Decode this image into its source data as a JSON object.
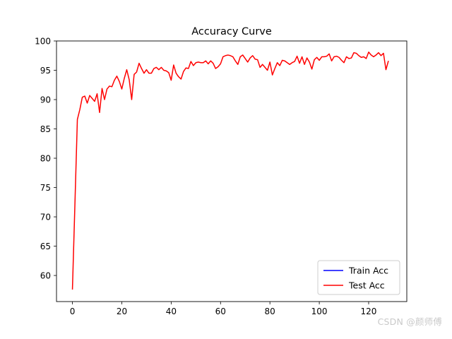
{
  "chart_data": {
    "type": "line",
    "title": "Accuracy Curve",
    "xlabel": "",
    "ylabel": "",
    "xlim": [
      -6.45,
      135.45
    ],
    "ylim": [
      55.55,
      100.0
    ],
    "xticks": [
      0,
      20,
      40,
      60,
      80,
      100,
      120
    ],
    "yticks": [
      60,
      65,
      70,
      75,
      80,
      85,
      90,
      95,
      100
    ],
    "grid": false,
    "legend_position": "bottom-right",
    "series": [
      {
        "name": "Train Acc",
        "color": "#0000ff",
        "x": [],
        "values": []
      },
      {
        "name": "Test Acc",
        "color": "#ff0000",
        "x": [
          0,
          1,
          2,
          3,
          4,
          5,
          6,
          7,
          8,
          9,
          10,
          11,
          12,
          13,
          14,
          15,
          16,
          17,
          18,
          19,
          20,
          21,
          22,
          23,
          24,
          25,
          26,
          27,
          28,
          29,
          30,
          31,
          32,
          33,
          34,
          35,
          36,
          37,
          38,
          39,
          40,
          41,
          42,
          43,
          44,
          45,
          46,
          47,
          48,
          49,
          50,
          51,
          52,
          53,
          54,
          55,
          56,
          57,
          58,
          59,
          60,
          61,
          62,
          63,
          64,
          65,
          66,
          67,
          68,
          69,
          70,
          71,
          72,
          73,
          74,
          75,
          76,
          77,
          78,
          79,
          80,
          81,
          82,
          83,
          84,
          85,
          86,
          87,
          88,
          89,
          90,
          91,
          92,
          93,
          94,
          95,
          96,
          97,
          98,
          99,
          100,
          101,
          102,
          103,
          104,
          105,
          106,
          107,
          108,
          109,
          110,
          111,
          112,
          113,
          114,
          115,
          116,
          117,
          118,
          119,
          120,
          121,
          122,
          123,
          124,
          125,
          126,
          127,
          128
        ],
        "values": [
          57.6,
          72.0,
          86.6,
          88.3,
          90.4,
          90.6,
          89.4,
          90.7,
          90.2,
          89.7,
          91.0,
          87.8,
          91.9,
          90.0,
          91.8,
          92.3,
          92.2,
          93.3,
          94.0,
          93.1,
          91.8,
          93.6,
          95.1,
          93.4,
          90.0,
          94.3,
          94.7,
          96.2,
          95.3,
          94.5,
          95.1,
          94.5,
          94.5,
          95.3,
          95.5,
          95.1,
          95.5,
          95.0,
          94.9,
          94.6,
          93.3,
          95.9,
          94.5,
          93.9,
          93.5,
          94.8,
          95.4,
          95.3,
          96.5,
          95.8,
          96.3,
          96.4,
          96.3,
          96.3,
          96.6,
          96.1,
          96.6,
          96.2,
          95.3,
          95.6,
          96.1,
          97.3,
          97.5,
          97.6,
          97.5,
          97.3,
          96.6,
          96.0,
          97.3,
          97.6,
          97.0,
          96.4,
          97.1,
          97.5,
          96.9,
          96.8,
          95.5,
          96.0,
          95.5,
          95.0,
          96.4,
          94.2,
          95.3,
          96.3,
          95.8,
          96.7,
          96.6,
          96.3,
          96.0,
          96.3,
          96.5,
          97.4,
          96.2,
          97.3,
          96.0,
          97.1,
          96.4,
          95.2,
          96.8,
          97.2,
          96.7,
          97.3,
          97.3,
          97.4,
          97.8,
          96.6,
          97.3,
          97.4,
          97.2,
          96.7,
          96.3,
          97.3,
          97.0,
          97.1,
          98.0,
          97.9,
          97.5,
          97.2,
          97.3,
          97.0,
          98.1,
          97.6,
          97.3,
          97.6,
          98.0,
          97.5,
          97.9,
          95.1,
          96.6
        ]
      }
    ]
  },
  "watermark": "CSDN @颜师傅"
}
